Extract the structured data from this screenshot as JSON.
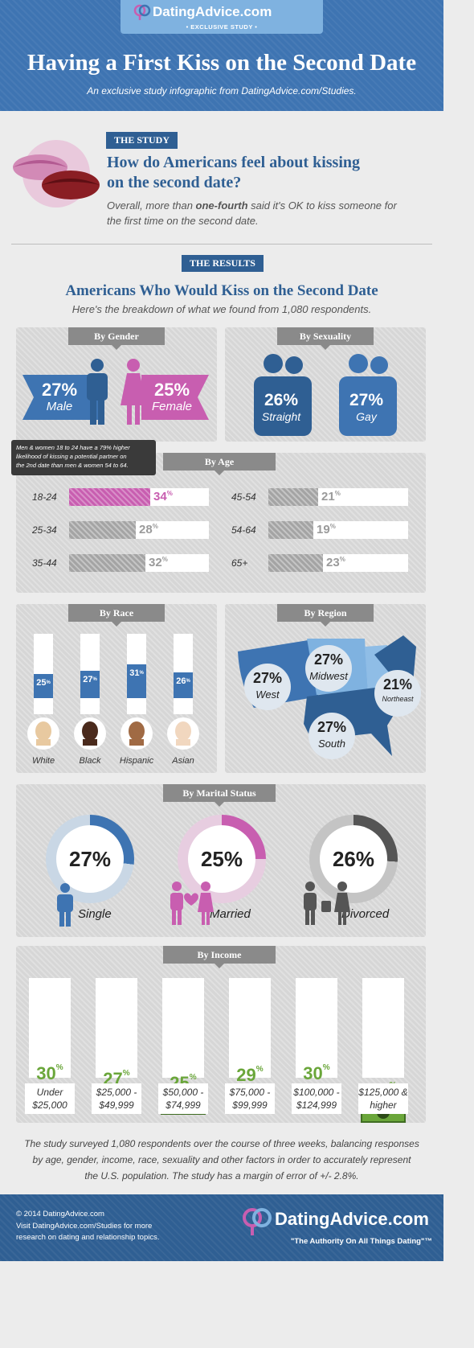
{
  "header": {
    "brand": "DatingAdvice.com",
    "badge": "• EXCLUSIVE STUDY •",
    "title": "Having a First Kiss on the Second Date",
    "subtitle": "An exclusive study infographic from DatingAdvice.com/Studies."
  },
  "study": {
    "ribbon": "THE STUDY",
    "question_line1": "How do Americans feel about kissing",
    "question_line2": "on the second date?",
    "body_pre": "Overall, more than ",
    "body_bold": "one-fourth",
    "body_post": " said it's OK to kiss someone for",
    "body_line2": "the first time on the second date."
  },
  "results": {
    "ribbon": "THE RESULTS",
    "title": "Americans Who Would Kiss on the Second Date",
    "subtitle": "Here's the breakdown of what we found from 1,080 respondents."
  },
  "chart_data": [
    {
      "type": "bar",
      "title": "By Gender",
      "categories": [
        "Male",
        "Female"
      ],
      "values": [
        27,
        25
      ],
      "display": [
        "27%",
        "25%"
      ],
      "colors": [
        "#3e74b2",
        "#c85eb0"
      ]
    },
    {
      "type": "bar",
      "title": "By Sexuality",
      "categories": [
        "Straight",
        "Gay"
      ],
      "values": [
        26,
        27
      ],
      "display": [
        "26%",
        "27%"
      ]
    },
    {
      "type": "bar",
      "title": "By Age",
      "categories": [
        "18-24",
        "25-34",
        "35-44",
        "45-54",
        "54-64",
        "65+"
      ],
      "values": [
        34,
        28,
        32,
        21,
        19,
        23
      ],
      "highlight": "18-24",
      "tooltip_line1": "Men & women 18 to 24 have a 79% higher",
      "tooltip_line2": "likelihood of kissing a potential partner on",
      "tooltip_line3": "the 2nd date than men & women 54 to 64."
    },
    {
      "type": "bar",
      "title": "By Race",
      "categories": [
        "White",
        "Black",
        "Hispanic",
        "Asian"
      ],
      "values": [
        25,
        27,
        31,
        26
      ]
    },
    {
      "type": "other",
      "title": "By Region",
      "categories": [
        "West",
        "Midwest",
        "Northeast",
        "South"
      ],
      "values": [
        27,
        27,
        21,
        27
      ],
      "display": [
        "27%",
        "27%",
        "21%",
        "27%"
      ]
    },
    {
      "type": "pie",
      "title": "By Marital Status",
      "categories": [
        "Single",
        "Married",
        "Divorced"
      ],
      "values": [
        27,
        25,
        26
      ],
      "display": [
        "27%",
        "25%",
        "26%"
      ],
      "colors": [
        "#3e74b2",
        "#c85eb0",
        "#555555"
      ]
    },
    {
      "type": "bar",
      "title": "By Income",
      "categories": [
        "Under $25,000",
        "$25,000 - $49,999",
        "$50,000 - $74,999",
        "$75,000 - $99,999",
        "$100,000 - $124,999",
        "$125,000 & higher"
      ],
      "labels_line1": [
        "Under",
        "$25,000 -",
        "$50,000 -",
        "$75,000 -",
        "$100,000 -",
        "$125,000 &"
      ],
      "labels_line2": [
        "$25,000",
        "$49,999",
        "$74,999",
        "$99,999",
        "$124,999",
        "higher"
      ],
      "values": [
        30,
        27,
        25,
        29,
        30,
        21
      ]
    }
  ],
  "percent_sign": "%",
  "methodology": {
    "line1": "The study surveyed 1,080 respondents over the course of three weeks, balancing responses",
    "line2": "by age, gender, income, race, sexuality and other factors in order to accurately represent",
    "line3": "the U.S. population. The study has a margin of error of +/- 2.8%."
  },
  "footer": {
    "copyright": "© 2014 DatingAdvice.com",
    "visit_line1": "Visit DatingAdvice.com/Studies for more",
    "visit_line2": "research on dating and relationship topics.",
    "brand": "DatingAdvice.com",
    "tagline": "\"The Authority On All Things Dating\"™"
  },
  "colors": {
    "blue": "#3e74b2",
    "dark_blue": "#2f5f93",
    "pink": "#c85eb0",
    "green": "#6aa63a",
    "gray": "#8a8a8a"
  }
}
